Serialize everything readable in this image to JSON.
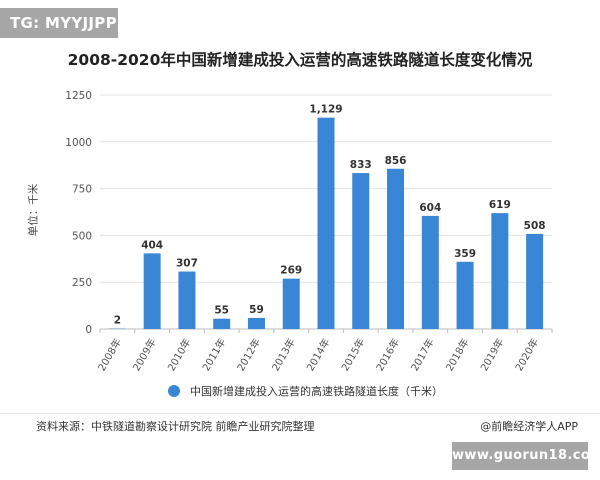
{
  "watermark": {
    "badge_text": "TG: MYYJJPP",
    "url_text": "www.guorun18.com"
  },
  "chart_data": {
    "type": "bar",
    "title": "2008-2020年中国新增建成投入运营的高速铁路隧道长度变化情况",
    "ylabel": "单位：千米",
    "xlabel": "",
    "ylim": [
      0,
      1250
    ],
    "yticks": [
      0,
      250,
      500,
      750,
      1000,
      1250
    ],
    "grid": true,
    "legend_position": "bottom",
    "categories": [
      "2008年",
      "2009年",
      "2010年",
      "2011年",
      "2012年",
      "2013年",
      "2014年",
      "2015年",
      "2016年",
      "2017年",
      "2018年",
      "2019年",
      "2020年"
    ],
    "series": [
      {
        "name": "中国新增建成投入运营的高速铁路隧道长度（千米）",
        "color": "#3a86d6",
        "values": [
          2,
          404,
          307,
          55,
          59,
          269,
          1129,
          833,
          856,
          604,
          359,
          619,
          508
        ],
        "labels": [
          "2",
          "404",
          "307",
          "55",
          "59",
          "269",
          "1,129",
          "833",
          "856",
          "604",
          "359",
          "619",
          "508"
        ]
      }
    ]
  },
  "footer": {
    "source": "资料来源：中铁隧道勘察设计研究院 前瞻产业研究院整理",
    "brand": "@前瞻经济学人APP"
  }
}
